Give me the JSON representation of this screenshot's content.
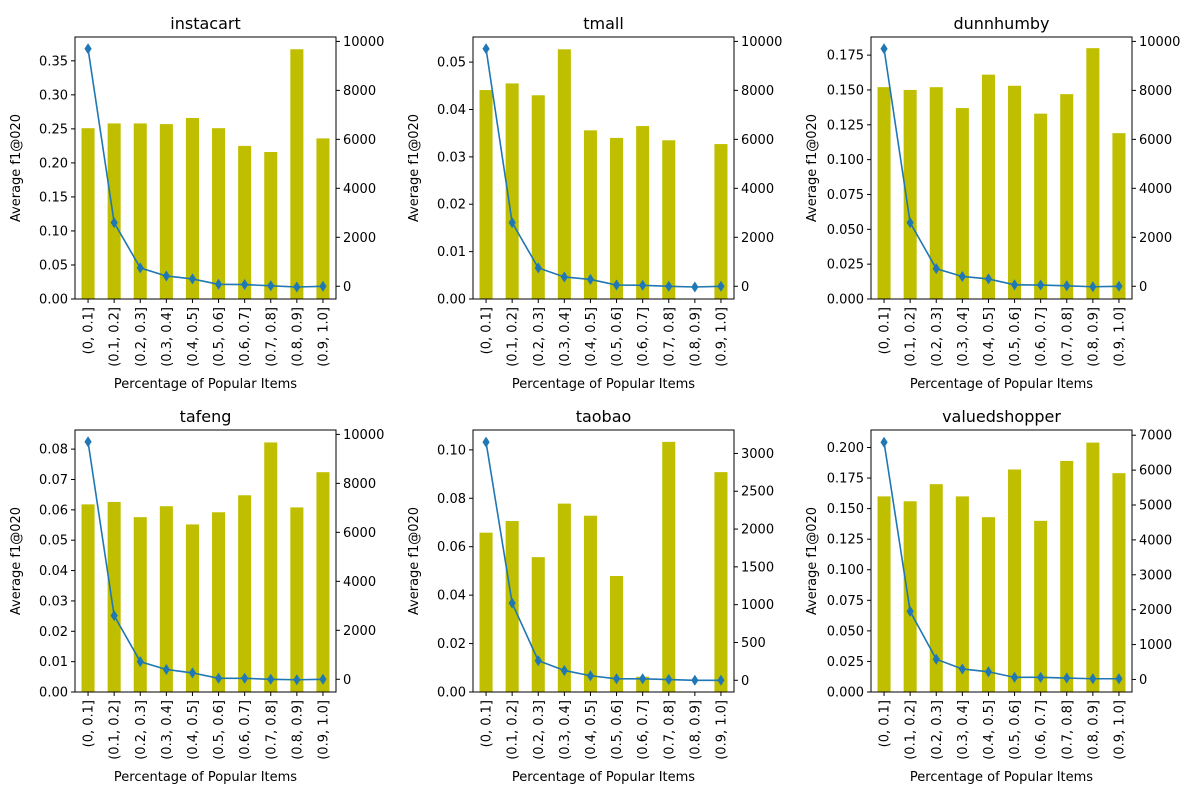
{
  "figure": {
    "shared_xlabel": "Percentage of Popular Items",
    "shared_ylabel": "Average f1@020"
  },
  "colors": {
    "bar": "#bfbf00",
    "line": "#1f77b4",
    "marker": "#1f77b4"
  },
  "chart_data": [
    {
      "type": "bar",
      "title": "instacart",
      "categories": [
        "(0, 0.1]",
        "(0.1, 0.2]",
        "(0.2, 0.3]",
        "(0.3, 0.4]",
        "(0.4, 0.5]",
        "(0.5, 0.6]",
        "(0.6, 0.7]",
        "(0.7, 0.8]",
        "(0.8, 0.9]",
        "(0.9, 1.0]"
      ],
      "values": [
        0.251,
        0.258,
        0.258,
        0.257,
        0.266,
        0.251,
        0.225,
        0.216,
        0.367,
        0.236
      ],
      "ylim": [
        0,
        0.385
      ],
      "yticks": [
        "0.00",
        "0.05",
        "0.10",
        "0.15",
        "0.20",
        "0.25",
        "0.30",
        "0.35"
      ],
      "ytick_values": [
        0,
        0.05,
        0.1,
        0.15,
        0.2,
        0.25,
        0.3,
        0.35
      ],
      "line_values": [
        9700,
        2600,
        750,
        420,
        300,
        80,
        70,
        20,
        -30,
        0
      ],
      "y2lim": [
        -520,
        10180
      ],
      "y2ticks": [
        "0",
        "2000",
        "4000",
        "6000",
        "8000",
        "10000"
      ],
      "y2tick_values": [
        0,
        2000,
        4000,
        6000,
        8000,
        10000
      ],
      "xlabel": "Percentage of Popular Items",
      "ylabel": "Average f1@020"
    },
    {
      "type": "bar",
      "title": "tmall",
      "categories": [
        "(0, 0.1]",
        "(0.1, 0.2]",
        "(0.2, 0.3]",
        "(0.3, 0.4]",
        "(0.4, 0.5]",
        "(0.5, 0.6]",
        "(0.6, 0.7]",
        "(0.7, 0.8]",
        "(0.8, 0.9]",
        "(0.9, 1.0]"
      ],
      "values": [
        0.0441,
        0.0455,
        0.043,
        0.0527,
        0.0356,
        0.034,
        0.0365,
        0.0335,
        0.0,
        0.0327
      ],
      "ylim": [
        0,
        0.0553
      ],
      "yticks": [
        "0.00",
        "0.01",
        "0.02",
        "0.03",
        "0.04",
        "0.05"
      ],
      "ytick_values": [
        0,
        0.01,
        0.02,
        0.03,
        0.04,
        0.05
      ],
      "line_values": [
        9700,
        2600,
        750,
        380,
        280,
        50,
        40,
        0,
        -30,
        0
      ],
      "y2lim": [
        -520,
        10180
      ],
      "y2ticks": [
        "0",
        "2000",
        "4000",
        "6000",
        "8000",
        "10000"
      ],
      "y2tick_values": [
        0,
        2000,
        4000,
        6000,
        8000,
        10000
      ],
      "xlabel": "Percentage of Popular Items",
      "ylabel": "Average f1@020"
    },
    {
      "type": "bar",
      "title": "dunnhumby",
      "categories": [
        "(0, 0.1]",
        "(0.1, 0.2]",
        "(0.2, 0.3]",
        "(0.3, 0.4]",
        "(0.4, 0.5]",
        "(0.5, 0.6]",
        "(0.6, 0.7]",
        "(0.7, 0.8]",
        "(0.8, 0.9]",
        "(0.9, 1.0]"
      ],
      "values": [
        0.152,
        0.15,
        0.152,
        0.137,
        0.161,
        0.153,
        0.133,
        0.147,
        0.18,
        0.119
      ],
      "ylim": [
        0,
        0.188
      ],
      "yticks": [
        "0.000",
        "0.025",
        "0.050",
        "0.075",
        "0.100",
        "0.125",
        "0.150",
        "0.175"
      ],
      "ytick_values": [
        0,
        0.025,
        0.05,
        0.075,
        0.1,
        0.125,
        0.15,
        0.175
      ],
      "line_values": [
        9700,
        2600,
        720,
        400,
        300,
        60,
        50,
        20,
        -20,
        0
      ],
      "y2lim": [
        -520,
        10180
      ],
      "y2ticks": [
        "0",
        "2000",
        "4000",
        "6000",
        "8000",
        "10000"
      ],
      "y2tick_values": [
        0,
        2000,
        4000,
        6000,
        8000,
        10000
      ],
      "xlabel": "Percentage of Popular Items",
      "ylabel": "Average f1@020"
    },
    {
      "type": "bar",
      "title": "tafeng",
      "categories": [
        "(0, 0.1]",
        "(0.1, 0.2]",
        "(0.2, 0.3]",
        "(0.3, 0.4]",
        "(0.4, 0.5]",
        "(0.5, 0.6]",
        "(0.6, 0.7]",
        "(0.7, 0.8]",
        "(0.8, 0.9]",
        "(0.9, 1.0]"
      ],
      "values": [
        0.0618,
        0.0626,
        0.0576,
        0.0612,
        0.0552,
        0.0592,
        0.0648,
        0.0822,
        0.0608,
        0.0724
      ],
      "ylim": [
        0,
        0.0863
      ],
      "yticks": [
        "0.00",
        "0.01",
        "0.02",
        "0.03",
        "0.04",
        "0.05",
        "0.06",
        "0.07",
        "0.08"
      ],
      "ytick_values": [
        0,
        0.01,
        0.02,
        0.03,
        0.04,
        0.05,
        0.06,
        0.07,
        0.08
      ],
      "line_values": [
        9700,
        2600,
        720,
        400,
        260,
        40,
        40,
        0,
        -20,
        0
      ],
      "y2lim": [
        -520,
        10180
      ],
      "y2ticks": [
        "0",
        "2000",
        "4000",
        "6000",
        "8000",
        "10000"
      ],
      "y2tick_values": [
        0,
        2000,
        4000,
        6000,
        8000,
        10000
      ],
      "xlabel": "Percentage of Popular Items",
      "ylabel": "Average f1@020"
    },
    {
      "type": "bar",
      "title": "taobao",
      "categories": [
        "(0, 0.1]",
        "(0.1, 0.2]",
        "(0.2, 0.3]",
        "(0.3, 0.4]",
        "(0.4, 0.5]",
        "(0.5, 0.6]",
        "(0.6, 0.7]",
        "(0.7, 0.8]",
        "(0.8, 0.9]",
        "(0.9, 1.0]"
      ],
      "values": [
        0.0658,
        0.0706,
        0.0557,
        0.0778,
        0.0728,
        0.0479,
        0.0063,
        0.1033,
        0.0,
        0.0908
      ],
      "ylim": [
        0,
        0.1082
      ],
      "yticks": [
        "0.00",
        "0.02",
        "0.04",
        "0.06",
        "0.08",
        "0.10"
      ],
      "ytick_values": [
        0,
        0.02,
        0.04,
        0.06,
        0.08,
        0.1
      ],
      "line_values": [
        3150,
        1020,
        260,
        130,
        60,
        20,
        20,
        10,
        0,
        0
      ],
      "y2lim": [
        -155,
        3310
      ],
      "y2ticks": [
        "0",
        "500",
        "1000",
        "1500",
        "2000",
        "2500",
        "3000"
      ],
      "y2tick_values": [
        0,
        500,
        1000,
        1500,
        2000,
        2500,
        3000
      ],
      "xlabel": "Percentage of Popular Items",
      "ylabel": "Average f1@020"
    },
    {
      "type": "bar",
      "title": "valuedshopper",
      "categories": [
        "(0, 0.1]",
        "(0.1, 0.2]",
        "(0.2, 0.3]",
        "(0.3, 0.4]",
        "(0.4, 0.5]",
        "(0.5, 0.6]",
        "(0.6, 0.7]",
        "(0.7, 0.8]",
        "(0.8, 0.9]",
        "(0.9, 1.0]"
      ],
      "values": [
        0.16,
        0.156,
        0.17,
        0.16,
        0.143,
        0.182,
        0.14,
        0.189,
        0.204,
        0.179
      ],
      "ylim": [
        0,
        0.2143
      ],
      "yticks": [
        "0.000",
        "0.025",
        "0.050",
        "0.075",
        "0.100",
        "0.125",
        "0.150",
        "0.175",
        "0.200"
      ],
      "ytick_values": [
        0,
        0.025,
        0.05,
        0.075,
        0.1,
        0.125,
        0.15,
        0.175,
        0.2
      ],
      "line_values": [
        6800,
        1950,
        580,
        300,
        220,
        60,
        60,
        40,
        20,
        20
      ],
      "y2lim": [
        -360,
        7150
      ],
      "y2ticks": [
        "0",
        "1000",
        "2000",
        "3000",
        "4000",
        "5000",
        "6000",
        "7000"
      ],
      "y2tick_values": [
        0,
        1000,
        2000,
        3000,
        4000,
        5000,
        6000,
        7000
      ],
      "xlabel": "Percentage of Popular Items",
      "ylabel": "Average f1@020"
    }
  ]
}
